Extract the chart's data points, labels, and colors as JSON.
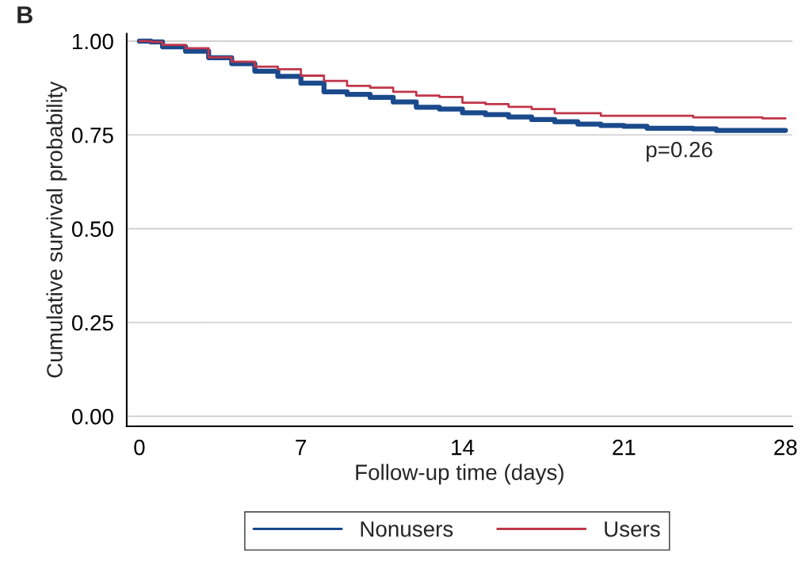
{
  "chart_data": {
    "type": "step",
    "xlabel": "Follow-up time (days)",
    "ylabel": "Cumulative survival probability",
    "annotations": [
      "B",
      "p=0.26"
    ],
    "series": [
      {
        "name": "Nonusers",
        "color": "#1a4a8c",
        "x": [
          0,
          0.5,
          1,
          2,
          3,
          4,
          5,
          6,
          7,
          8,
          9,
          10,
          11,
          12,
          13,
          14,
          15,
          16,
          17,
          18,
          19,
          20,
          21,
          22,
          24,
          25,
          28
        ],
        "values": [
          1.0,
          0.998,
          0.985,
          0.973,
          0.956,
          0.94,
          0.92,
          0.906,
          0.888,
          0.865,
          0.858,
          0.85,
          0.838,
          0.824,
          0.819,
          0.809,
          0.804,
          0.798,
          0.791,
          0.785,
          0.779,
          0.775,
          0.773,
          0.768,
          0.766,
          0.762,
          0.762
        ]
      },
      {
        "name": "Users",
        "color": "#c0364a",
        "x": [
          0,
          0.5,
          1,
          2,
          3,
          4,
          5,
          6,
          7,
          8,
          9,
          10,
          11,
          12,
          13,
          14,
          15,
          16,
          17,
          18,
          20,
          24,
          27,
          28
        ],
        "values": [
          1.0,
          0.998,
          0.99,
          0.981,
          0.957,
          0.945,
          0.932,
          0.925,
          0.908,
          0.894,
          0.881,
          0.876,
          0.865,
          0.855,
          0.851,
          0.836,
          0.832,
          0.825,
          0.819,
          0.808,
          0.801,
          0.797,
          0.794,
          0.794
        ]
      }
    ],
    "xlim": [
      -0.55,
      28.3
    ],
    "xticks": [
      0,
      7,
      14,
      21,
      28
    ],
    "ylim": [
      -0.027,
      1.02
    ],
    "yticks": [
      {
        "value": 0,
        "label": "0.00"
      },
      {
        "value": 0.25,
        "label": "0.25"
      },
      {
        "value": 0.5,
        "label": "0.50"
      },
      {
        "value": 0.75,
        "label": "0.75"
      },
      {
        "value": 1,
        "label": "1.00"
      }
    ],
    "grid": "y",
    "legend": "bottom",
    "line_style": "solid",
    "marker": "none"
  }
}
